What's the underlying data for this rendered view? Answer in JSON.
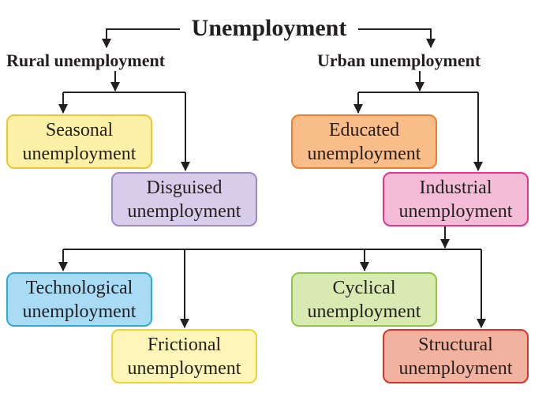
{
  "title": "Unemployment",
  "categories": {
    "rural": "Rural unemployment",
    "urban": "Urban unemployment"
  },
  "types": {
    "seasonal": {
      "line1": "Seasonal",
      "line2": "unemployment",
      "fill": "#fdf0a7",
      "border": "#f2c52f"
    },
    "disguised": {
      "line1": "Disguised",
      "line2": "unemployment",
      "fill": "#d7cdea",
      "border": "#9d89c4"
    },
    "educated": {
      "line1": "Educated",
      "line2": "unemployment",
      "fill": "#f9bd8a",
      "border": "#f07d2a"
    },
    "industrial": {
      "line1": "Industrial",
      "line2": "unemployment",
      "fill": "#f5bcd8",
      "border": "#e5348f"
    },
    "technological": {
      "line1": "Technological",
      "line2": "unemployment",
      "fill": "#a9dcf4",
      "border": "#2ca9dd"
    },
    "cyclical": {
      "line1": "Cyclical",
      "line2": "unemployment",
      "fill": "#d9e9b2",
      "border": "#8dc63f"
    },
    "frictional": {
      "line1": "Frictional",
      "line2": "unemployment",
      "fill": "#fdf6b8",
      "border": "#f2d22f"
    },
    "structural": {
      "line1": "Structural",
      "line2": "unemployment",
      "fill": "#f1b3a0",
      "border": "#d9342b"
    }
  },
  "colors": {
    "ink": "#231f20",
    "background": "#ffffff"
  }
}
